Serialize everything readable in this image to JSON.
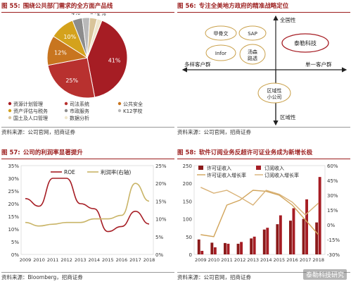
{
  "panels": {
    "p55": {
      "num": "图 55:",
      "title": "围绕公共部门需求的全方面产品线",
      "source": "资料来源：公司官网，招商证券"
    },
    "p56": {
      "num": "图 56:",
      "title": "专注全美地方政府的精准战略定位",
      "source": "资料来源：公司官网，招商证券"
    },
    "p57": {
      "num": "图 57:",
      "title": "公司的利润率显著提升",
      "source": "资料来源：Bloomberg，招商证券"
    },
    "p58": {
      "num": "图 58:",
      "title": "软件订阅业务反超许可证业务成为新增长极",
      "source": "资料来源：公司官网，招商证券"
    }
  },
  "chart_data": [
    {
      "type": "pie",
      "categories": [
        "资源计划管理",
        "司法系统",
        "公共安全",
        "资产评估与税务",
        "市政服务",
        "K12学校",
        "国土及人口管理",
        "数据分析"
      ],
      "values": [
        41,
        25,
        12,
        10,
        4,
        3,
        3,
        2
      ],
      "labels": [
        "41%",
        "25%",
        "12%",
        "10%",
        "4%",
        "3%",
        "3%",
        "2%"
      ],
      "colors": [
        "#a61d24",
        "#b8312f",
        "#c8751f",
        "#d4a21c",
        "#8c8c8c",
        "#b9b9b9",
        "#d9c49a",
        "#efe6cc"
      ]
    },
    {
      "type": "diagram",
      "axis_top": "全国性",
      "axis_bottom": "区域性",
      "axis_left": "多样客户群",
      "axis_right": "单一客户群",
      "nodes": [
        "甲骨文",
        "SAP",
        "Infor",
        "汤森路透",
        "泰勒科技",
        "区域性小公司"
      ]
    },
    {
      "type": "line",
      "x": [
        "2009",
        "2010",
        "2011",
        "2012",
        "2013",
        "2014",
        "2015",
        "2016",
        "2017",
        "2018"
      ],
      "series": [
        {
          "name": "ROE",
          "axis": "left",
          "color": "#a61d24",
          "values": [
            22,
            19,
            30,
            30,
            20,
            18,
            9,
            11,
            17,
            12
          ]
        },
        {
          "name": "利润率(右轴)",
          "axis": "right",
          "color": "#c9b467",
          "values": [
            9,
            8,
            8.5,
            9,
            9,
            10,
            10,
            11,
            20,
            15
          ]
        }
      ],
      "yleft_ticks": [
        "0%",
        "5%",
        "10%",
        "15%",
        "20%",
        "25%",
        "30%",
        "35%"
      ],
      "yright_ticks": [
        "0%",
        "5%",
        "10%",
        "15%",
        "20%",
        "25%"
      ],
      "ylim_left": [
        0,
        35
      ],
      "ylim_right": [
        0,
        25
      ]
    },
    {
      "type": "bar",
      "x": [
        "2009",
        "2010",
        "2011",
        "2012",
        "2013",
        "2014",
        "2015",
        "2016",
        "2017",
        "2018"
      ],
      "series": [
        {
          "name": "许可证收入",
          "kind": "bar",
          "color": "#8b1a1a",
          "values": [
            42,
            33,
            32,
            30,
            45,
            70,
            85,
            95,
            100,
            90
          ]
        },
        {
          "name": "订阅收入",
          "kind": "bar",
          "color": "#a61d24",
          "values": [
            10,
            20,
            30,
            35,
            50,
            75,
            110,
            130,
            155,
            218
          ]
        },
        {
          "name": "许可证收入增长率",
          "kind": "line",
          "axis": "right",
          "color": "#d1a45a",
          "values": [
            -10,
            -12,
            20,
            25,
            35,
            34,
            30,
            20,
            5,
            -10
          ]
        },
        {
          "name": "订阅收入增长率",
          "kind": "line",
          "axis": "right",
          "color": "#d9b277",
          "values": [
            38,
            32,
            35,
            28,
            20,
            35,
            31,
            23,
            10,
            22
          ]
        }
      ],
      "yleft_ticks": [
        "0",
        "50",
        "100",
        "150",
        "200",
        "250"
      ],
      "yright_ticks": [
        "-30%",
        "-15%",
        "0%",
        "15%",
        "30%",
        "45%",
        "60%"
      ],
      "ylim_left": [
        0,
        250
      ],
      "ylim_right": [
        -30,
        60
      ]
    }
  ],
  "watermark": "泰勒科技研究"
}
